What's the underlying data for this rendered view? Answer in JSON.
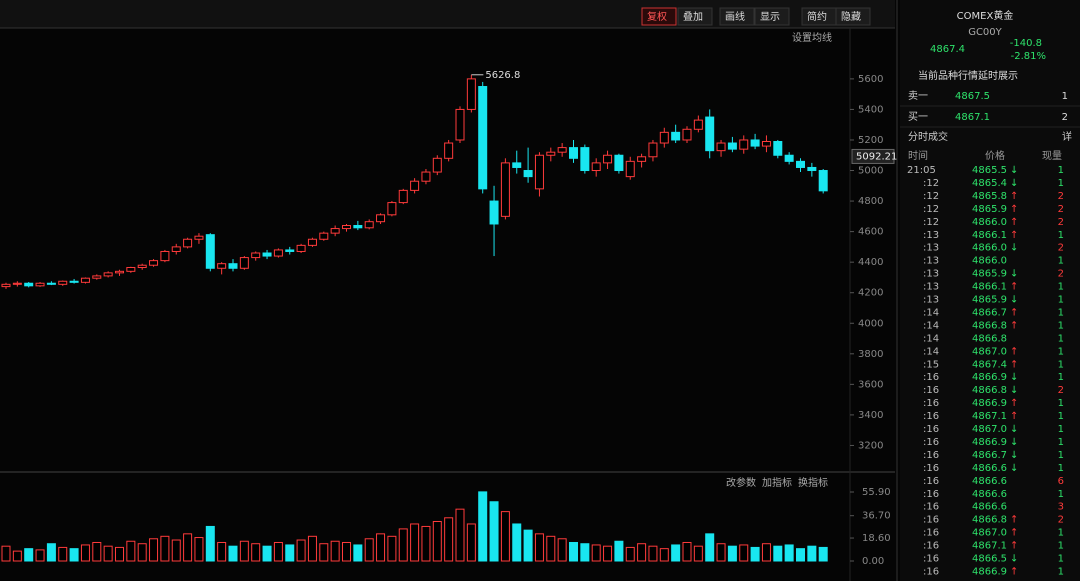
{
  "toolbar": [
    "复权",
    "叠加",
    "画线",
    "显示",
    "简约",
    "隐藏"
  ],
  "ma_setting": "设置均线",
  "volume_tools": [
    "改参数",
    "加指标",
    "换指标"
  ],
  "chart_data": {
    "type": "candlestick",
    "candles": [
      [
        4240,
        4265,
        4225,
        4255
      ],
      [
        4255,
        4275,
        4240,
        4262
      ],
      [
        4262,
        4270,
        4235,
        4245
      ],
      [
        4245,
        4270,
        4238,
        4262
      ],
      [
        4262,
        4275,
        4250,
        4255
      ],
      [
        4255,
        4280,
        4245,
        4275
      ],
      [
        4275,
        4290,
        4260,
        4268
      ],
      [
        4268,
        4300,
        4260,
        4295
      ],
      [
        4295,
        4320,
        4285,
        4310
      ],
      [
        4310,
        4340,
        4300,
        4330
      ],
      [
        4330,
        4350,
        4310,
        4340
      ],
      [
        4340,
        4370,
        4330,
        4365
      ],
      [
        4365,
        4390,
        4350,
        4380
      ],
      [
        4380,
        4420,
        4370,
        4410
      ],
      [
        4410,
        4480,
        4400,
        4470
      ],
      [
        4470,
        4520,
        4450,
        4500
      ],
      [
        4500,
        4560,
        4490,
        4550
      ],
      [
        4550,
        4590,
        4520,
        4570
      ],
      [
        4580,
        4590,
        4340,
        4360
      ],
      [
        4360,
        4400,
        4320,
        4390
      ],
      [
        4390,
        4420,
        4340,
        4360
      ],
      [
        4360,
        4440,
        4350,
        4430
      ],
      [
        4430,
        4470,
        4410,
        4460
      ],
      [
        4460,
        4480,
        4420,
        4440
      ],
      [
        4440,
        4490,
        4430,
        4480
      ],
      [
        4480,
        4500,
        4450,
        4470
      ],
      [
        4470,
        4520,
        4460,
        4510
      ],
      [
        4510,
        4560,
        4500,
        4550
      ],
      [
        4550,
        4600,
        4540,
        4590
      ],
      [
        4590,
        4640,
        4570,
        4620
      ],
      [
        4620,
        4650,
        4600,
        4640
      ],
      [
        4640,
        4670,
        4610,
        4625
      ],
      [
        4625,
        4680,
        4615,
        4665
      ],
      [
        4665,
        4720,
        4650,
        4710
      ],
      [
        4710,
        4800,
        4700,
        4790
      ],
      [
        4790,
        4880,
        4780,
        4870
      ],
      [
        4870,
        4950,
        4850,
        4930
      ],
      [
        4930,
        5010,
        4910,
        4990
      ],
      [
        4990,
        5100,
        4970,
        5080
      ],
      [
        5080,
        5200,
        5060,
        5180
      ],
      [
        5200,
        5420,
        5180,
        5400
      ],
      [
        5400,
        5626.8,
        5380,
        5600
      ],
      [
        5550,
        5580,
        4850,
        4880
      ],
      [
        4800,
        4900,
        4440,
        4650
      ],
      [
        4700,
        5080,
        4680,
        5050
      ],
      [
        5050,
        5130,
        4980,
        5020
      ],
      [
        5000,
        5150,
        4920,
        4960
      ],
      [
        4880,
        5120,
        4830,
        5100
      ],
      [
        5100,
        5150,
        5060,
        5120
      ],
      [
        5120,
        5180,
        5090,
        5150
      ],
      [
        5150,
        5200,
        5050,
        5080
      ],
      [
        5150,
        5170,
        4980,
        5000
      ],
      [
        5000,
        5080,
        4960,
        5050
      ],
      [
        5050,
        5130,
        5010,
        5100
      ],
      [
        5100,
        5110,
        4980,
        5000
      ],
      [
        4960,
        5090,
        4940,
        5060
      ],
      [
        5060,
        5110,
        5020,
        5090
      ],
      [
        5090,
        5200,
        5060,
        5180
      ],
      [
        5180,
        5280,
        5150,
        5250
      ],
      [
        5250,
        5300,
        5180,
        5200
      ],
      [
        5200,
        5290,
        5180,
        5270
      ],
      [
        5270,
        5360,
        5250,
        5330
      ],
      [
        5350,
        5400,
        5080,
        5130
      ],
      [
        5130,
        5200,
        5090,
        5180
      ],
      [
        5180,
        5220,
        5120,
        5140
      ],
      [
        5140,
        5230,
        5110,
        5200
      ],
      [
        5200,
        5240,
        5140,
        5160
      ],
      [
        5160,
        5230,
        5120,
        5190
      ],
      [
        5190,
        5200,
        5080,
        5100
      ],
      [
        5100,
        5120,
        5040,
        5060
      ],
      [
        5060,
        5080,
        4990,
        5020
      ],
      [
        5020,
        5050,
        4960,
        5000
      ],
      [
        5000,
        5010,
        4850,
        4867
      ]
    ],
    "volumes": [
      12,
      8,
      10,
      9,
      14,
      11,
      10,
      13,
      15,
      12,
      11,
      16,
      14,
      18,
      20,
      17,
      22,
      19,
      28,
      15,
      12,
      16,
      14,
      12,
      15,
      13,
      17,
      20,
      14,
      16,
      15,
      13,
      18,
      22,
      20,
      26,
      30,
      28,
      32,
      35,
      42,
      30,
      56,
      48,
      40,
      30,
      25,
      22,
      20,
      18,
      15,
      14,
      13,
      12,
      16,
      11,
      14,
      12,
      10,
      13,
      15,
      12,
      22,
      14,
      12,
      13,
      11,
      14,
      12,
      13,
      10,
      12,
      11
    ],
    "ylim": [
      3000,
      5920
    ],
    "yticks": [
      5600,
      5400,
      5200,
      5000,
      4800,
      4600,
      4400,
      4200,
      4000,
      3800,
      3600,
      3400,
      3200
    ],
    "vlim": [
      0,
      55.9
    ],
    "vticks": [
      {
        "value": 55.9,
        "label": "55.90"
      },
      {
        "value": 36.7,
        "label": "36.70"
      },
      {
        "value": 18.6,
        "label": "18.60"
      },
      {
        "value": 0,
        "label": "0.00"
      }
    ],
    "high_marker": 5626.8,
    "last_marker": 5092.21,
    "up_color": "#ff3b3b",
    "down_color": "#19e6f0"
  },
  "quote": {
    "name": "COMEX黄金",
    "code": "GC00Y",
    "price": "4867.4",
    "change": "-140.8",
    "pct": "-2.81%",
    "notice": "当前品种行情延时展示",
    "book": [
      [
        "卖一",
        "4867.5",
        "1"
      ],
      [
        "买一",
        "4867.1",
        "2"
      ]
    ]
  },
  "trades": {
    "title": "分时成交",
    "detail": "详",
    "headers": [
      "时间",
      "价格",
      "现量"
    ],
    "rows": [
      {
        "t": "21:05",
        "p": "4865.5",
        "d": "↓",
        "v": "1"
      },
      {
        "t": ":12",
        "p": "4865.4",
        "d": "↓",
        "v": "1"
      },
      {
        "t": ":12",
        "p": "4865.8",
        "d": "↑",
        "v": "2"
      },
      {
        "t": ":12",
        "p": "4865.9",
        "d": "↑",
        "v": "2"
      },
      {
        "t": ":12",
        "p": "4866.0",
        "d": "↑",
        "v": "2"
      },
      {
        "t": ":13",
        "p": "4866.1",
        "d": "↑",
        "v": "1"
      },
      {
        "t": ":13",
        "p": "4866.0",
        "d": "↓",
        "v": "2"
      },
      {
        "t": ":13",
        "p": "4866.0",
        "v": "1"
      },
      {
        "t": ":13",
        "p": "4865.9",
        "d": "↓",
        "v": "2"
      },
      {
        "t": ":13",
        "p": "4866.1",
        "d": "↑",
        "v": "1"
      },
      {
        "t": ":13",
        "p": "4865.9",
        "d": "↓",
        "v": "1"
      },
      {
        "t": ":14",
        "p": "4866.7",
        "d": "↑",
        "v": "1"
      },
      {
        "t": ":14",
        "p": "4866.8",
        "d": "↑",
        "v": "1"
      },
      {
        "t": ":14",
        "p": "4866.8",
        "v": "1"
      },
      {
        "t": ":14",
        "p": "4867.0",
        "d": "↑",
        "v": "1"
      },
      {
        "t": ":15",
        "p": "4867.4",
        "d": "↑",
        "v": "1"
      },
      {
        "t": ":16",
        "p": "4866.9",
        "d": "↓",
        "v": "1"
      },
      {
        "t": ":16",
        "p": "4866.8",
        "d": "↓",
        "v": "2"
      },
      {
        "t": ":16",
        "p": "4866.9",
        "d": "↑",
        "v": "1"
      },
      {
        "t": ":16",
        "p": "4867.1",
        "d": "↑",
        "v": "1"
      },
      {
        "t": ":16",
        "p": "4867.0",
        "d": "↓",
        "v": "1"
      },
      {
        "t": ":16",
        "p": "4866.9",
        "d": "↓",
        "v": "1"
      },
      {
        "t": ":16",
        "p": "4866.7",
        "d": "↓",
        "v": "1"
      },
      {
        "t": ":16",
        "p": "4866.6",
        "d": "↓",
        "v": "1"
      },
      {
        "t": ":16",
        "p": "4866.6",
        "v": "6"
      },
      {
        "t": ":16",
        "p": "4866.6",
        "v": "1"
      },
      {
        "t": ":16",
        "p": "4866.6",
        "v": "3"
      },
      {
        "t": ":16",
        "p": "4866.8",
        "d": "↑",
        "v": "2"
      },
      {
        "t": ":16",
        "p": "4867.0",
        "d": "↑",
        "v": "1"
      },
      {
        "t": ":16",
        "p": "4867.1",
        "d": "↑",
        "v": "1"
      },
      {
        "t": ":16",
        "p": "4866.5",
        "d": "↓",
        "v": "1"
      },
      {
        "t": ":16",
        "p": "4866.9",
        "d": "↑",
        "v": "1"
      }
    ]
  }
}
